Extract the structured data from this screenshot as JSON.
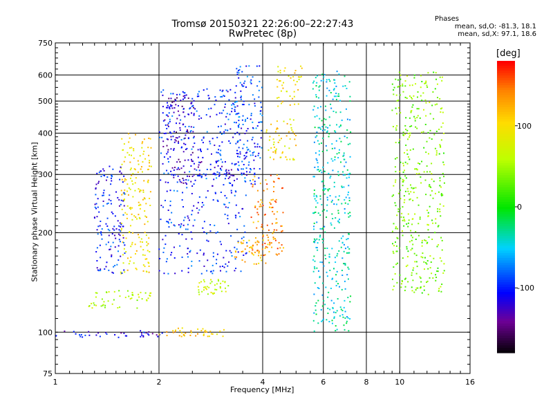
{
  "header": {
    "title": "Tromsø 20150321 22:26:00–22:27:43",
    "subtitle": "RwPretec (8p)"
  },
  "stats": {
    "heading": "Phases",
    "o_mode": "mean, sd,O: -81.3, 18.1",
    "x_mode": "mean, sd,X:  97.1, 18.6"
  },
  "colorbar": {
    "unit": "[deg]",
    "ticks": [
      {
        "value": 100,
        "label": "100"
      },
      {
        "value": 0,
        "label": "0"
      },
      {
        "value": -100,
        "label": "-100"
      }
    ],
    "range": [
      -180,
      180
    ]
  },
  "chart_data": {
    "type": "scatter",
    "title": "Tromsø 20150321 22:26:00–22:27:43",
    "subtitle": "RwPretec (8p)",
    "xlabel": "Frequency [MHz]",
    "ylabel": "Stationary phase Virtual Height [km]",
    "xscale": "log",
    "yscale": "log",
    "xlim": [
      1,
      16
    ],
    "ylim": [
      75,
      750
    ],
    "xticks": [
      1,
      2,
      4,
      6,
      8,
      10,
      16
    ],
    "yticks": [
      75,
      100,
      200,
      300,
      400,
      500,
      600,
      750
    ],
    "x_gridlines": [
      2,
      4,
      6,
      8,
      10
    ],
    "y_gridlines": [
      100,
      200,
      300,
      400,
      500,
      600
    ],
    "color_variable": "phase [deg]",
    "clusters": [
      {
        "x": [
          1.0,
          2.05
        ],
        "y": [
          96,
          101
        ],
        "phase": -110
      },
      {
        "x": [
          2.0,
          3.1
        ],
        "y": [
          97,
          103
        ],
        "phase": 110
      },
      {
        "x": [
          1.25,
          1.9
        ],
        "y": [
          118,
          135
        ],
        "phase": 60
      },
      {
        "x": [
          1.55,
          1.9
        ],
        "y": [
          150,
          400
        ],
        "phase": 100
      },
      {
        "x": [
          1.3,
          1.6
        ],
        "y": [
          150,
          320
        ],
        "phase": -100
      },
      {
        "x": [
          2.0,
          3.6
        ],
        "y": [
          150,
          550
        ],
        "phase": -95
      },
      {
        "x": [
          2.05,
          2.55
        ],
        "y": [
          280,
          520
        ],
        "phase": -125
      },
      {
        "x": [
          2.6,
          3.3
        ],
        "y": [
          290,
          330
        ],
        "phase": -110
      },
      {
        "x": [
          3.3,
          4.0
        ],
        "y": [
          280,
          640
        ],
        "phase": -90
      },
      {
        "x": [
          3.3,
          4.2
        ],
        "y": [
          160,
          190
        ],
        "phase": 120
      },
      {
        "x": [
          3.7,
          4.6
        ],
        "y": [
          170,
          300
        ],
        "phase": 140
      },
      {
        "x": [
          4.1,
          5.0
        ],
        "y": [
          330,
          450
        ],
        "phase": 100
      },
      {
        "x": [
          4.4,
          5.2
        ],
        "y": [
          480,
          640
        ],
        "phase": 100
      },
      {
        "x": [
          2.6,
          3.2
        ],
        "y": [
          130,
          145
        ],
        "phase": 70
      },
      {
        "x": [
          5.6,
          7.2
        ],
        "y": [
          100,
          620
        ],
        "phase": -40
      },
      {
        "x": [
          9.5,
          13.5
        ],
        "y": [
          130,
          620
        ],
        "phase": 40
      }
    ]
  }
}
